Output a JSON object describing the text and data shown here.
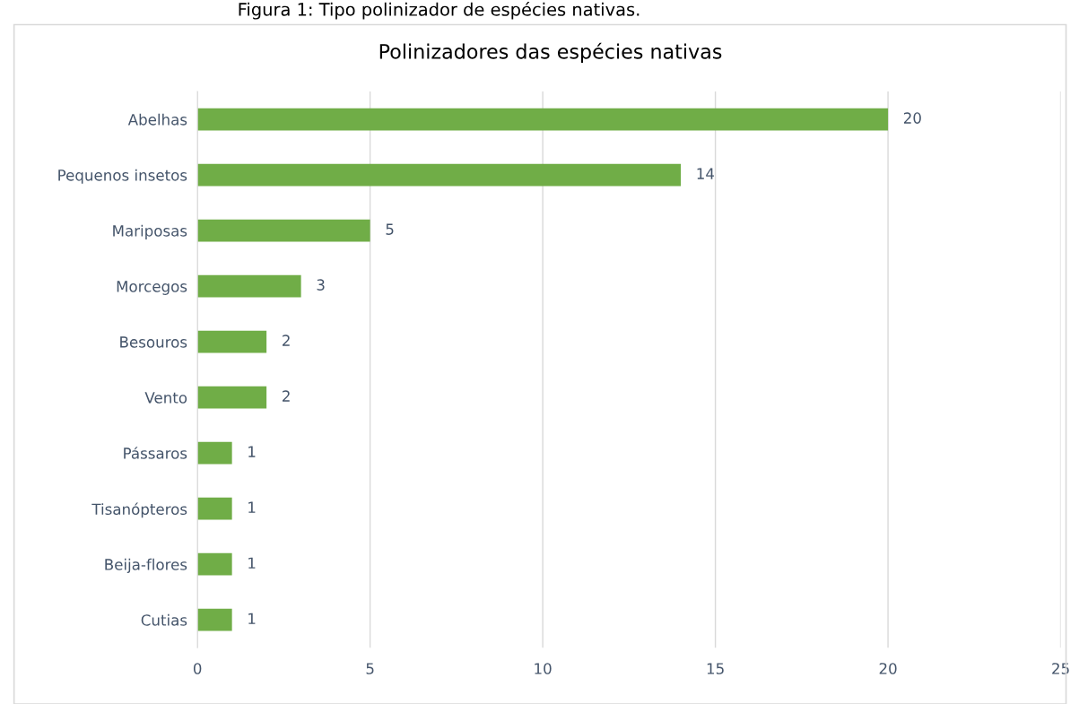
{
  "chart_data": {
    "type": "bar",
    "orientation": "horizontal",
    "title": "Polinizadores das espécies nativas",
    "annotations": [
      "Figura 1: Tipo polinizador de espécies nativas."
    ],
    "categories": [
      "Abelhas",
      "Pequenos insetos",
      "Mariposas",
      "Morcegos",
      "Besouros",
      "Vento",
      "Pássaros",
      "Tisanópteros",
      "Beija-flores",
      "Cutias"
    ],
    "values": [
      20,
      14,
      5,
      3,
      2,
      2,
      1,
      1,
      1,
      1
    ],
    "color": "#70ad47",
    "xlim": [
      0,
      25
    ],
    "xticks": [
      0,
      5,
      10,
      15,
      20,
      25
    ],
    "grid": "x",
    "data_labels": true
  }
}
